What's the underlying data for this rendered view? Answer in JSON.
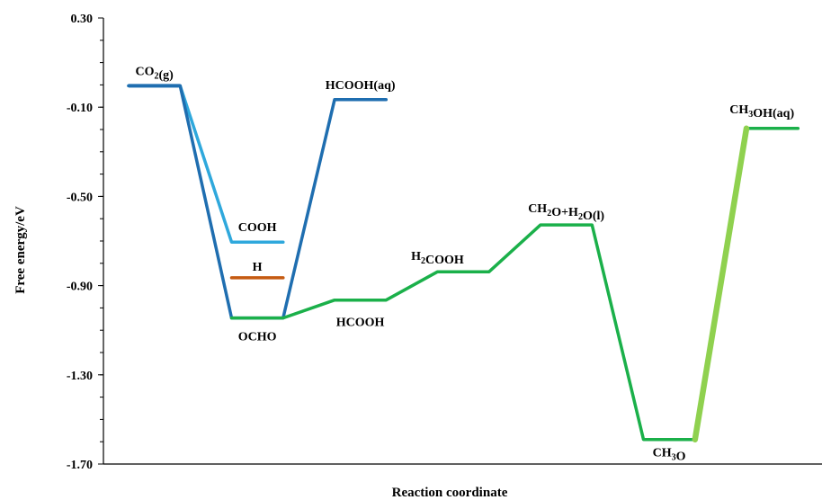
{
  "chart_data": {
    "type": "line",
    "xlabel": "Reaction coordinate",
    "ylabel": "Free energy/eV",
    "ylim": [
      -1.7,
      0.3
    ],
    "yticks": [
      "0.30",
      "-0.10",
      "-0.50",
      "-0.90",
      "-1.30",
      "-1.70"
    ],
    "x_range": [
      0,
      13
    ],
    "grid": false,
    "states": [
      {
        "label": "CO₂(g)",
        "x": [
          0,
          1
        ],
        "y": -0.004,
        "color": "#1f6eb0"
      },
      {
        "label": "HCOOH(aq)",
        "x": [
          4,
          5
        ],
        "y": -0.066,
        "color": "#1f6eb0"
      },
      {
        "label": "COOH",
        "x": [
          2,
          3
        ],
        "y": -0.705,
        "color": "#2fa8dc"
      },
      {
        "label": "H",
        "x": [
          2,
          3
        ],
        "y": -0.865,
        "color": "#c55a11"
      },
      {
        "label": "OCHO",
        "x": [
          2,
          3
        ],
        "y": -1.045,
        "color": "#1f6eb0"
      },
      {
        "label": "HCOOH",
        "x": [
          4,
          5
        ],
        "y": -0.965,
        "color": "#1bb04a"
      },
      {
        "label": "H₂COOH",
        "x": [
          6,
          7
        ],
        "y": -0.838,
        "color": "#1bb04a"
      },
      {
        "label": "CH₂O+H₂O(l)",
        "x": [
          8,
          9
        ],
        "y": -0.628,
        "color": "#1bb04a"
      },
      {
        "label": "CH₃O",
        "x": [
          10,
          11
        ],
        "y": -1.59,
        "color": "#1bb04a"
      },
      {
        "label": "CH₃OH(aq)",
        "x": [
          12,
          13
        ],
        "y": -0.195,
        "color": "#1bb04a"
      }
    ],
    "series": [
      {
        "color": "#2fa8dc",
        "points": [
          [
            0,
            -0.004
          ],
          [
            1,
            -0.004
          ],
          [
            2,
            -0.705
          ],
          [
            3,
            -0.705
          ]
        ]
      },
      {
        "color": "#1f6eb0",
        "points": [
          [
            0,
            -0.004
          ],
          [
            1,
            -0.004
          ],
          [
            2,
            -1.045
          ],
          [
            3,
            -1.045
          ],
          [
            4,
            -0.066
          ],
          [
            5,
            -0.066
          ]
        ]
      },
      {
        "color": "#1bb04a",
        "points": [
          [
            2,
            -1.045
          ],
          [
            3,
            -1.045
          ],
          [
            4,
            -0.965
          ],
          [
            5,
            -0.965
          ],
          [
            6,
            -0.838
          ],
          [
            7,
            -0.838
          ],
          [
            8,
            -0.628
          ],
          [
            9,
            -0.628
          ],
          [
            10,
            -1.59
          ],
          [
            11,
            -1.59
          ],
          [
            12,
            -0.195
          ],
          [
            13,
            -0.195
          ]
        ]
      },
      {
        "color": "#8fd14f",
        "points": [
          [
            11,
            -1.59
          ],
          [
            12,
            -0.195
          ]
        ]
      },
      {
        "color": "#c55a11",
        "points": [
          [
            2,
            -0.865
          ],
          [
            3,
            -0.865
          ]
        ]
      }
    ]
  }
}
